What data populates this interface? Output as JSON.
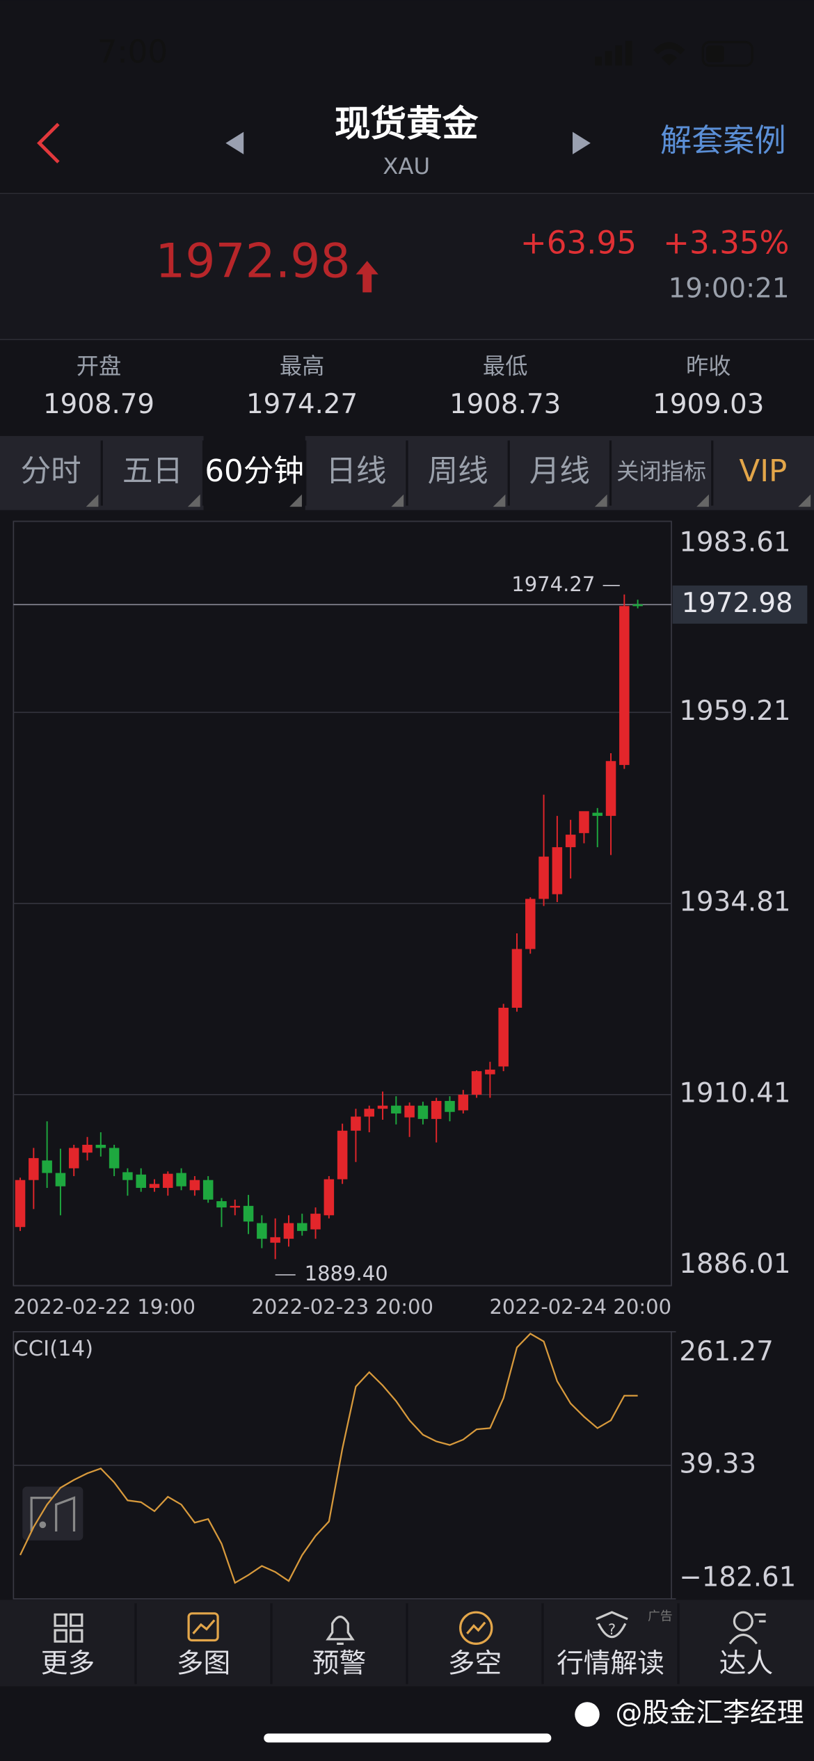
{
  "status_bar": {
    "time": "7:00"
  },
  "header": {
    "title": "现货黄金",
    "code": "XAU",
    "action": "解套案例"
  },
  "quote": {
    "price": "1972.98",
    "change": "+63.95",
    "change_pct": "+3.35%",
    "time": "19:00:21"
  },
  "stats": [
    {
      "label": "开盘",
      "value": "1908.79"
    },
    {
      "label": "最高",
      "value": "1974.27"
    },
    {
      "label": "最低",
      "value": "1908.73"
    },
    {
      "label": "昨收",
      "value": "1909.03"
    }
  ],
  "tabs": [
    "分时",
    "五日",
    "60分钟",
    "日线",
    "周线",
    "月线",
    "关闭指标",
    "VIP"
  ],
  "chart": {
    "type": "candlestick",
    "up_color": "#e3262b",
    "down_color": "#1ea83f",
    "ylim": [
      1886.01,
      1983.61
    ],
    "yticks": [
      1983.61,
      1959.21,
      1934.81,
      1910.41,
      1886.01
    ],
    "last": 1972.98,
    "candles": [
      [
        1893.5,
        1899.8,
        1893.0,
        1899.5
      ],
      [
        1899.5,
        1903.6,
        1895.8,
        1902.3
      ],
      [
        1902.0,
        1907.0,
        1898.5,
        1900.4
      ],
      [
        1900.4,
        1903.5,
        1895.0,
        1898.7
      ],
      [
        1901.0,
        1904.0,
        1900.0,
        1903.6
      ],
      [
        1903.0,
        1905.0,
        1902.0,
        1904.0
      ],
      [
        1904.0,
        1905.6,
        1902.5,
        1903.6
      ],
      [
        1903.6,
        1904.0,
        1900.0,
        1901.0
      ],
      [
        1900.5,
        1901.0,
        1897.5,
        1899.5
      ],
      [
        1900.2,
        1901.0,
        1898.0,
        1898.5
      ],
      [
        1898.5,
        1899.6,
        1898.0,
        1899.0
      ],
      [
        1898.5,
        1900.6,
        1897.5,
        1900.3
      ],
      [
        1900.4,
        1901.0,
        1898.2,
        1898.7
      ],
      [
        1898.2,
        1900.0,
        1897.5,
        1899.5
      ],
      [
        1899.5,
        1900.0,
        1896.6,
        1897.0
      ],
      [
        1896.8,
        1897.2,
        1893.5,
        1896.0
      ],
      [
        1896.0,
        1897.0,
        1895.0,
        1896.2
      ],
      [
        1896.2,
        1897.6,
        1892.6,
        1894.2
      ],
      [
        1894.0,
        1895.0,
        1890.8,
        1892.0
      ],
      [
        1891.5,
        1894.6,
        1889.4,
        1892.2
      ],
      [
        1892.0,
        1895.0,
        1891.0,
        1894.0
      ],
      [
        1894.0,
        1895.2,
        1892.4,
        1893.0
      ],
      [
        1893.2,
        1896.0,
        1892.0,
        1895.2
      ],
      [
        1895.0,
        1900.0,
        1894.6,
        1899.6
      ],
      [
        1899.6,
        1906.7,
        1899.0,
        1905.8
      ],
      [
        1905.8,
        1908.6,
        1901.8,
        1907.6
      ],
      [
        1907.6,
        1909.0,
        1905.6,
        1908.6
      ],
      [
        1908.6,
        1910.8,
        1907.2,
        1909.0
      ],
      [
        1909.0,
        1910.2,
        1906.6,
        1908.0
      ],
      [
        1907.5,
        1909.4,
        1905.0,
        1909.0
      ],
      [
        1909.0,
        1909.5,
        1906.6,
        1907.3
      ],
      [
        1907.3,
        1910.0,
        1904.3,
        1909.6
      ],
      [
        1909.6,
        1910.2,
        1907.0,
        1908.2
      ],
      [
        1908.4,
        1911.0,
        1908.0,
        1910.4
      ],
      [
        1910.4,
        1913.5,
        1910.0,
        1913.4
      ],
      [
        1913.0,
        1914.6,
        1910.0,
        1913.6
      ],
      [
        1914.0,
        1922.0,
        1913.4,
        1921.5
      ],
      [
        1921.5,
        1931.0,
        1921.0,
        1929.0
      ],
      [
        1929.0,
        1935.6,
        1928.4,
        1935.4
      ],
      [
        1935.4,
        1948.7,
        1934.5,
        1940.8
      ],
      [
        1936.0,
        1946.0,
        1935.0,
        1942.0
      ],
      [
        1942.0,
        1945.5,
        1938.0,
        1943.6
      ],
      [
        1943.8,
        1946.5,
        1942.5,
        1946.6
      ],
      [
        1946.4,
        1947.0,
        1942.0,
        1946.0
      ],
      [
        1946.0,
        1954.0,
        1941.0,
        1953.0
      ],
      [
        1952.5,
        1974.27,
        1952.0,
        1972.8
      ],
      [
        1973.0,
        1973.6,
        1972.5,
        1972.98
      ]
    ],
    "annotations": [
      {
        "value": 1974.27,
        "label": "1974.27"
      },
      {
        "value": 1889.4,
        "label": "1889.40"
      }
    ],
    "x_labels": [
      "2022-02-22 19:00",
      "2022-02-23 20:00",
      "2022-02-24 20:00"
    ]
  },
  "cci": {
    "type": "line",
    "title": "CCI(14)",
    "color": "#d89a3c",
    "ylim": [
      -182.61,
      261.27
    ],
    "yticks": [
      261.27,
      39.33,
      {
        "value": -182.61,
        "label": "−182.61"
      }
    ],
    "values": [
      -109.9,
      -63.3,
      -26,
      2,
      15,
      26,
      34,
      11,
      -19,
      -22,
      -37,
      -13,
      -26,
      -56,
      -50,
      -91,
      -156,
      -143,
      -128,
      -138,
      -153,
      -110,
      -78,
      -54,
      67,
      170,
      194,
      172,
      146,
      114,
      90,
      79,
      73,
      82,
      99,
      101,
      151,
      235,
      258,
      245,
      179,
      142,
      120,
      101,
      114,
      155,
      155
    ]
  },
  "nav": [
    "更多",
    "多图",
    "预警",
    "多空",
    "行情解读",
    "达人"
  ],
  "nav_badge": "广告",
  "watermark": "@股金汇李经理"
}
